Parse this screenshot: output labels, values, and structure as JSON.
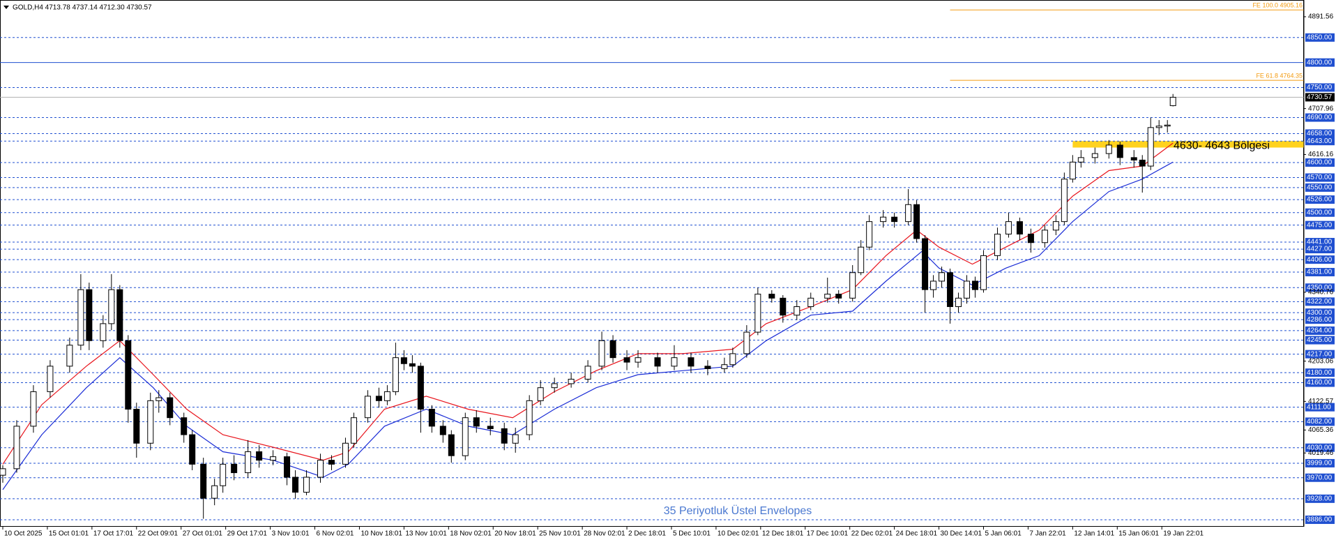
{
  "chart_data": {
    "type": "candlestick",
    "title": "GOLD,H4  4713.78 4737.14 4712.30 4730.57",
    "annotation": "35 Periyotluk Üstel Envelopes",
    "up_color": "#ffffff",
    "down_color": "#000000",
    "wick_color": "#000000",
    "x": [
      0,
      5,
      11,
      17,
      24,
      28,
      31,
      36,
      39,
      42,
      45,
      48,
      53,
      56,
      60,
      65,
      68,
      72,
      76,
      79,
      83,
      88,
      92,
      97,
      102,
      105,
      109,
      114,
      118,
      123,
      126,
      131,
      135,
      138,
      141,
      144,
      147,
      150,
      154,
      158,
      161,
      166,
      170,
      175,
      180,
      184,
      189,
      193,
      198,
      204,
      210,
      215,
      219,
      224,
      228,
      235,
      241,
      247,
      253,
      259,
      262,
      267,
      271,
      276,
      280,
      285,
      290,
      296,
      300,
      305,
      308,
      311,
      316,
      320,
      325,
      328,
      331,
      334,
      337,
      340,
      343,
      346,
      349,
      352,
      357,
      361,
      365,
      369,
      374,
      378,
      381,
      384,
      387,
      392,
      397,
      401,
      406,
      409,
      412,
      415,
      418,
      420
    ],
    "open": [
      3975,
      3988,
      4073,
      4142,
      4193,
      4235,
      4346,
      4244,
      4278,
      4346,
      4244,
      4107,
      4039,
      4124,
      4130,
      4090,
      4056,
      3997,
      3929,
      3954,
      3997,
      3980,
      4022,
      4005,
      4012,
      3971,
      3941,
      3971,
      4005,
      3997,
      4039,
      4090,
      4133,
      4124,
      4142,
      4210,
      4198,
      4193,
      4107,
      4073,
      4056,
      4014,
      4090,
      4073,
      4068,
      4039,
      4056,
      4124,
      4150,
      4158,
      4167,
      4193,
      4244,
      4210,
      4201,
      4210,
      4193,
      4210,
      4193,
      4188,
      4196,
      4218,
      4261,
      4337,
      4329,
      4295,
      4312,
      4329,
      4337,
      4329,
      4380,
      4431,
      4482,
      4491,
      4482,
      4516,
      4448,
      4346,
      4363,
      4380,
      4312,
      4329,
      4363,
      4346,
      4414,
      4457,
      4482,
      4457,
      4440,
      4465,
      4482,
      4567,
      4601,
      4610,
      4618,
      4635,
      4610,
      4605,
      4593,
      4670,
      4673,
      4713.78
    ],
    "high": [
      3995,
      4085,
      4155,
      4205,
      4250,
      4377,
      4360,
      4295,
      4377,
      4355,
      4255,
      4120,
      4140,
      4145,
      4140,
      4100,
      4065,
      4010,
      3968,
      4010,
      4015,
      4045,
      4035,
      4025,
      4020,
      3985,
      3985,
      4018,
      4015,
      4050,
      4100,
      4145,
      4150,
      4155,
      4240,
      4225,
      4215,
      4200,
      4115,
      4085,
      4065,
      4100,
      4105,
      4090,
      4080,
      4070,
      4135,
      4165,
      4170,
      4180,
      4205,
      4262,
      4255,
      4225,
      4225,
      4220,
      4235,
      4220,
      4205,
      4210,
      4230,
      4275,
      4350,
      4345,
      4335,
      4325,
      4340,
      4370,
      4345,
      4395,
      4445,
      4495,
      4505,
      4500,
      4547,
      4525,
      4455,
      4375,
      4392,
      4388,
      4340,
      4375,
      4372,
      4425,
      4470,
      4500,
      4490,
      4468,
      4475,
      4495,
      4580,
      4615,
      4625,
      4630,
      4645,
      4642,
      4625,
      4615,
      4690,
      4685,
      4685,
      4737.14
    ],
    "low": [
      3960,
      3980,
      4060,
      4130,
      4180,
      4225,
      4225,
      4230,
      4265,
      4230,
      4080,
      4010,
      4025,
      4100,
      4075,
      4040,
      3985,
      3888,
      3915,
      3940,
      3965,
      3970,
      3990,
      3995,
      3955,
      3928,
      3935,
      3960,
      3985,
      3990,
      4030,
      4080,
      4110,
      4115,
      4135,
      4185,
      4180,
      4060,
      4060,
      4040,
      4000,
      4005,
      4060,
      4055,
      4025,
      4020,
      4045,
      4115,
      4140,
      4150,
      4160,
      4185,
      4200,
      4185,
      4190,
      4180,
      4185,
      4180,
      4175,
      4180,
      4190,
      4210,
      4255,
      4320,
      4280,
      4285,
      4305,
      4320,
      4318,
      4322,
      4375,
      4425,
      4470,
      4470,
      4475,
      4440,
      4300,
      4330,
      4350,
      4278,
      4300,
      4318,
      4330,
      4340,
      4405,
      4450,
      4445,
      4420,
      4430,
      4455,
      4475,
      4560,
      4590,
      4598,
      4608,
      4595,
      4590,
      4540,
      4585,
      4655,
      4660,
      4712.3
    ],
    "close": [
      3988,
      4073,
      4142,
      4193,
      4235,
      4346,
      4244,
      4278,
      4346,
      4244,
      4107,
      4039,
      4124,
      4130,
      4090,
      4056,
      3997,
      3929,
      3954,
      3997,
      3980,
      4022,
      4005,
      4012,
      3971,
      3941,
      3971,
      4005,
      3997,
      4039,
      4090,
      4133,
      4124,
      4142,
      4210,
      4198,
      4193,
      4107,
      4073,
      4056,
      4014,
      4090,
      4073,
      4068,
      4039,
      4056,
      4124,
      4150,
      4158,
      4167,
      4193,
      4244,
      4210,
      4201,
      4210,
      4193,
      4210,
      4193,
      4188,
      4196,
      4218,
      4261,
      4337,
      4329,
      4295,
      4312,
      4329,
      4337,
      4329,
      4380,
      4431,
      4482,
      4491,
      4482,
      4516,
      4448,
      4346,
      4363,
      4380,
      4312,
      4329,
      4363,
      4346,
      4414,
      4457,
      4482,
      4457,
      4440,
      4465,
      4482,
      4567,
      4601,
      4610,
      4618,
      4635,
      4610,
      4605,
      4593,
      4670,
      4673,
      4675,
      4730.57
    ],
    "lines": [
      {
        "color": "#e8141c",
        "x": [
          0,
          14,
          30,
          42,
          54,
          66,
          79,
          97,
          115,
          124,
          137,
          152,
          167,
          183,
          198,
          213,
          228,
          244,
          262,
          274,
          290,
          305,
          317,
          328,
          336,
          348,
          360,
          372,
          384,
          397,
          409,
          420
        ],
        "values": [
          3997,
          4116,
          4193,
          4244,
          4176,
          4107,
          4056,
          4031,
          4005,
          4022,
          4107,
          4133,
          4107,
          4090,
          4142,
          4184,
          4218,
          4218,
          4227,
          4278,
          4312,
          4346,
          4414,
          4465,
          4431,
          4397,
          4431,
          4465,
          4533,
          4584,
          4593,
          4639
        ]
      },
      {
        "color": "#1a2cd6",
        "x": [
          0,
          14,
          30,
          42,
          54,
          66,
          79,
          97,
          115,
          124,
          137,
          152,
          167,
          183,
          198,
          213,
          228,
          244,
          262,
          274,
          290,
          305,
          317,
          330,
          336,
          348,
          360,
          372,
          384,
          397,
          409,
          420
        ],
        "values": [
          3946,
          4056,
          4150,
          4210,
          4150,
          4073,
          4022,
          4005,
          3971,
          3997,
          4073,
          4107,
          4073,
          4056,
          4107,
          4150,
          4176,
          4184,
          4193,
          4244,
          4295,
          4303,
          4363,
          4423,
          4389,
          4355,
          4389,
          4414,
          4482,
          4542,
          4567,
          4601
        ]
      }
    ],
    "xlim": [
      -1,
      467
    ],
    "xticks": [
      {
        "value": 0,
        "label": "10 Oct 2025"
      },
      {
        "value": 16,
        "label": "15 Oct 01:01"
      },
      {
        "value": 32,
        "label": "17 Oct 17:01"
      },
      {
        "value": 48,
        "label": "22 Oct 09:01"
      },
      {
        "value": 64,
        "label": "27 Oct 01:01"
      },
      {
        "value": 80,
        "label": "29 Oct 17:01"
      },
      {
        "value": 96,
        "label": "3 Nov 10:01"
      },
      {
        "value": 112,
        "label": "6 Nov 02:01"
      },
      {
        "value": 128,
        "label": "10 Nov 18:01"
      },
      {
        "value": 144,
        "label": "13 Nov 10:01"
      },
      {
        "value": 160,
        "label": "18 Nov 02:01"
      },
      {
        "value": 176,
        "label": "20 Nov 18:01"
      },
      {
        "value": 192,
        "label": "25 Nov 10:01"
      },
      {
        "value": 208,
        "label": "28 Nov 02:01"
      },
      {
        "value": 224,
        "label": "2 Dec 18:01"
      },
      {
        "value": 240,
        "label": "5 Dec 10:01"
      },
      {
        "value": 256,
        "label": "10 Dec 02:01"
      },
      {
        "value": 272,
        "label": "12 Dec 18:01"
      },
      {
        "value": 288,
        "label": "17 Dec 10:01"
      },
      {
        "value": 304,
        "label": "22 Dec 02:01"
      },
      {
        "value": 320,
        "label": "24 Dec 18:01"
      },
      {
        "value": 336,
        "label": "30 Dec 14:01"
      },
      {
        "value": 352,
        "label": "5 Jan 06:01"
      },
      {
        "value": 368,
        "label": "7 Jan 22:01"
      },
      {
        "value": 384,
        "label": "12 Jan 14:01"
      },
      {
        "value": 400,
        "label": "15 Jan 06:01"
      },
      {
        "value": 416,
        "label": "19 Jan 22:01"
      }
    ],
    "ylim": [
      3872,
      4925
    ],
    "yticks": [
      4891.56,
      4707.96,
      4616.16,
      4340.76,
      4203.06,
      4122.57,
      4065.36,
      4019.46
    ],
    "level_color": "#1f4fd0",
    "levels": [
      {
        "value": 4850,
        "label": "4850.00"
      },
      {
        "value": 4750,
        "label": "4750.00"
      },
      {
        "value": 4690,
        "label": "4690.00"
      },
      {
        "value": 4658,
        "label": "4658.00"
      },
      {
        "value": 4643,
        "label": "4643.00"
      },
      {
        "value": 4600,
        "label": "4600.00"
      },
      {
        "value": 4570,
        "label": "4570.00"
      },
      {
        "value": 4550,
        "label": "4550.00"
      },
      {
        "value": 4526,
        "label": "4526.00"
      },
      {
        "value": 4500,
        "label": "4500.00"
      },
      {
        "value": 4475,
        "label": "4475.00"
      },
      {
        "value": 4441,
        "label": "4441.00"
      },
      {
        "value": 4427,
        "label": "4427.00"
      },
      {
        "value": 4406,
        "label": "4406.00"
      },
      {
        "value": 4381,
        "label": "4381.00"
      },
      {
        "value": 4350,
        "label": "4350.00"
      },
      {
        "value": 4322,
        "label": "4322.00"
      },
      {
        "value": 4300,
        "label": "4300.00"
      },
      {
        "value": 4286,
        "label": "4286.00"
      },
      {
        "value": 4264,
        "label": "4264.00"
      },
      {
        "value": 4245,
        "label": "4245.00"
      },
      {
        "value": 4217,
        "label": "4217.00"
      },
      {
        "value": 4180,
        "label": "4180.00"
      },
      {
        "value": 4160,
        "label": "4160.00"
      },
      {
        "value": 4111,
        "label": "4111.00"
      },
      {
        "value": 4082,
        "label": "4082.00"
      },
      {
        "value": 4030,
        "label": "4030.00"
      },
      {
        "value": 3999,
        "label": "3999.00"
      },
      {
        "value": 3970,
        "label": "3970.00"
      },
      {
        "value": 3928,
        "label": "3928.00"
      },
      {
        "value": 3886,
        "label": "3886.00"
      }
    ],
    "solid_level": {
      "value": 4800,
      "label": "4800.00"
    },
    "last_price": 4730.57,
    "fib_color": "#f39c12",
    "fib_start": 340,
    "fib_levels": [
      {
        "value": 4905.16,
        "label": "FE 100.0 4905.16"
      },
      {
        "value": 4764.35,
        "label": "FE 61.8 4764.35"
      }
    ],
    "zone": {
      "low": 4630,
      "high": 4643,
      "start": 384,
      "color": "#ffd21f",
      "label": "4630- 4643 Bölgesi"
    }
  }
}
